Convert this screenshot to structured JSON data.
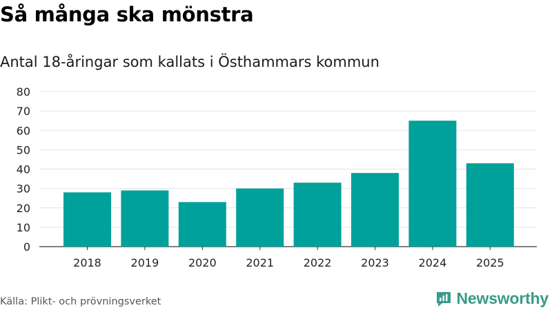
{
  "title": "Så många ska mönstra",
  "subtitle": "Antal 18-åringar som kallats i Östhammars kommun",
  "source": "Källa: Plikt- och prövningsverket",
  "brand": {
    "name": "Newsworthy",
    "color": "#3a9a8a",
    "icon": "newsworthy-logo-icon"
  },
  "colors": {
    "bar": "#00a19a",
    "grid": "#e3e3e3",
    "axis": "#333333"
  },
  "chart_data": {
    "type": "bar",
    "title": "Så många ska mönstra",
    "subtitle": "Antal 18-åringar som kallats i Östhammars kommun",
    "categories": [
      "2018",
      "2019",
      "2020",
      "2021",
      "2022",
      "2023",
      "2024",
      "2025"
    ],
    "values": [
      28,
      29,
      23,
      30,
      33,
      38,
      65,
      43
    ],
    "yticks": [
      0,
      10,
      20,
      30,
      40,
      50,
      60,
      70,
      80
    ],
    "ylim": [
      0,
      80
    ],
    "xlabel": "",
    "ylabel": "",
    "grid": true,
    "legend": "none"
  }
}
